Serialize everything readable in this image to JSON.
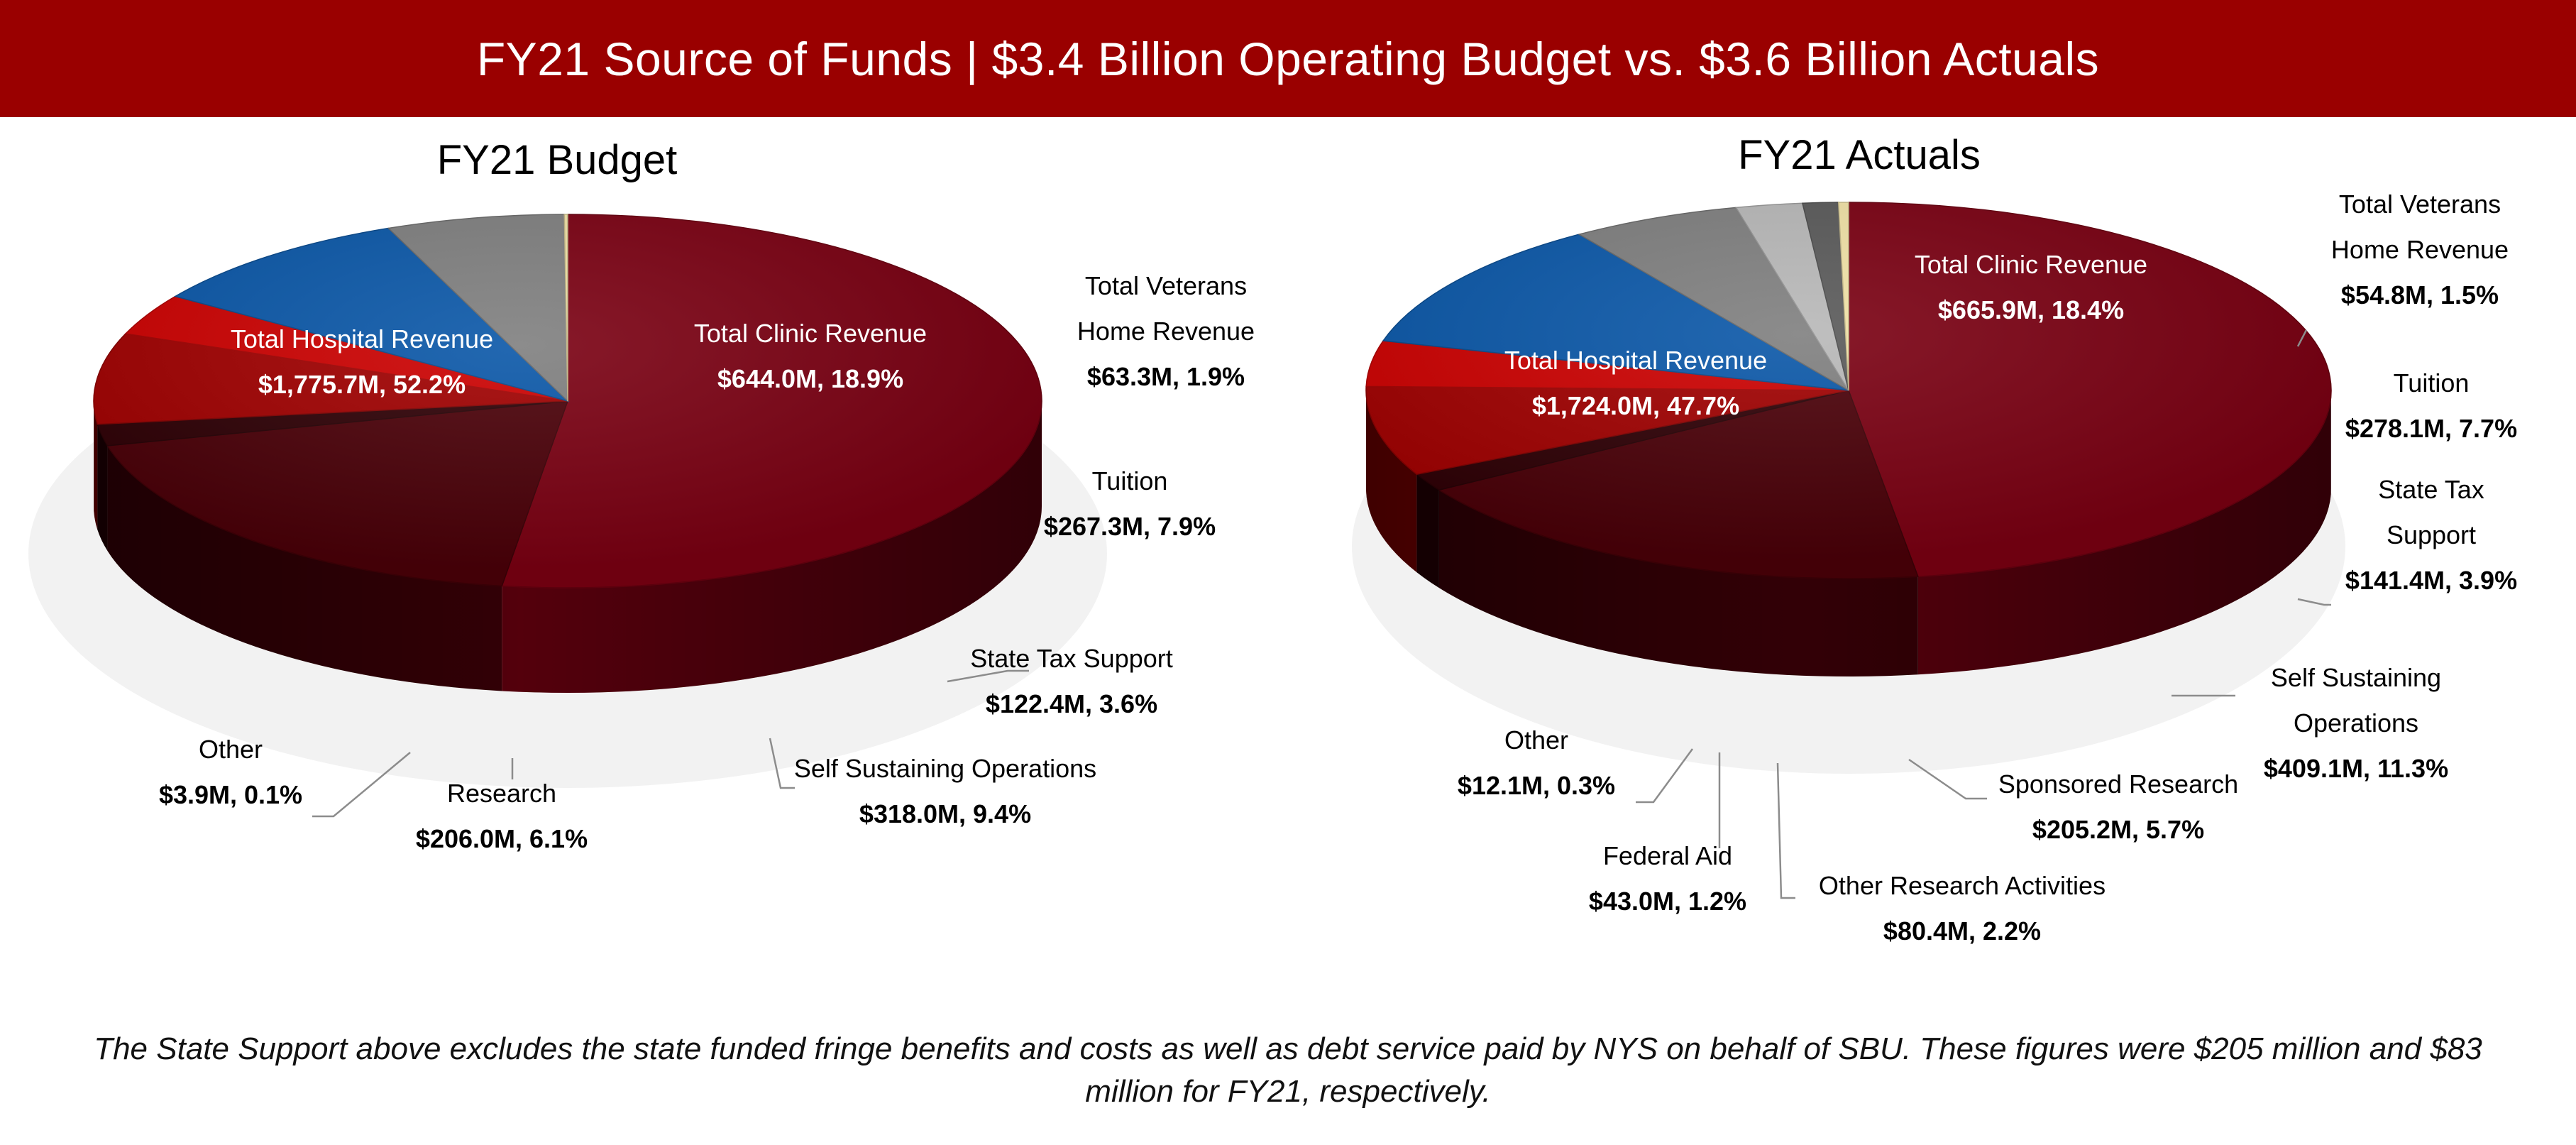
{
  "header": {
    "title": "FY21 Source of Funds | $3.4 Billion Operating Budget vs. $3.6 Billion Actuals"
  },
  "colors": {
    "banner": "#9a0000",
    "hospital": "#7a0012",
    "clinic": "#4a0008",
    "veterans": "#2e0005",
    "tuition": "#a00000",
    "state_tax": "#cc0000",
    "self_sustaining": "#0a57a8",
    "sponsored_research": "#7f7f7f",
    "other_research": "#b8b8b8",
    "federal_aid": "#595959",
    "other": "#f1e2a6"
  },
  "chart_data": [
    {
      "type": "pie",
      "title": "FY21 Budget",
      "slices": [
        {
          "key": "hospital",
          "name": "Total Hospital Revenue",
          "value_label": "$1,775.7M, 52.2%",
          "value_millions": 1775.7,
          "percent": 52.2,
          "color": "#7a0012"
        },
        {
          "key": "clinic",
          "name": "Total Clinic Revenue",
          "value_label": "$644.0M, 18.9%",
          "value_millions": 644.0,
          "percent": 18.9,
          "color": "#4a0008"
        },
        {
          "key": "veterans",
          "name": [
            "Total Veterans",
            "Home Revenue"
          ],
          "value_label": "$63.3M, 1.9%",
          "value_millions": 63.3,
          "percent": 1.9,
          "color": "#2e0005"
        },
        {
          "key": "tuition",
          "name": "Tuition",
          "value_label": "$267.3M, 7.9%",
          "value_millions": 267.3,
          "percent": 7.9,
          "color": "#a00000"
        },
        {
          "key": "state_tax",
          "name": "State Tax Support",
          "value_label": "$122.4M, 3.6%",
          "value_millions": 122.4,
          "percent": 3.6,
          "color": "#cc0000"
        },
        {
          "key": "self_sustaining",
          "name": "Self Sustaining Operations",
          "value_label": "$318.0M, 9.4%",
          "value_millions": 318.0,
          "percent": 9.4,
          "color": "#0a57a8"
        },
        {
          "key": "research",
          "name": "Research",
          "value_label": "$206.0M, 6.1%",
          "value_millions": 206.0,
          "percent": 6.1,
          "color": "#7f7f7f"
        },
        {
          "key": "other",
          "name": "Other",
          "value_label": "$3.9M, 0.1%",
          "value_millions": 3.9,
          "percent": 0.1,
          "color": "#f1e2a6"
        }
      ]
    },
    {
      "type": "pie",
      "title": "FY21 Actuals",
      "slices": [
        {
          "key": "hospital",
          "name": "Total Hospital Revenue",
          "value_label": "$1,724.0M, 47.7%",
          "value_millions": 1724.0,
          "percent": 47.7,
          "color": "#7a0012"
        },
        {
          "key": "clinic",
          "name": "Total Clinic Revenue",
          "value_label": "$665.9M, 18.4%",
          "value_millions": 665.9,
          "percent": 18.4,
          "color": "#4a0008"
        },
        {
          "key": "veterans",
          "name": [
            "Total Veterans",
            "Home Revenue"
          ],
          "value_label": "$54.8M, 1.5%",
          "value_millions": 54.8,
          "percent": 1.5,
          "color": "#2e0005"
        },
        {
          "key": "tuition",
          "name": "Tuition",
          "value_label": "$278.1M, 7.7%",
          "value_millions": 278.1,
          "percent": 7.7,
          "color": "#a00000"
        },
        {
          "key": "state_tax",
          "name": [
            "State Tax",
            "Support"
          ],
          "value_label": "$141.4M, 3.9%",
          "value_millions": 141.4,
          "percent": 3.9,
          "color": "#cc0000"
        },
        {
          "key": "self_sustaining",
          "name": [
            "Self Sustaining",
            "Operations"
          ],
          "value_label": "$409.1M, 11.3%",
          "value_millions": 409.1,
          "percent": 11.3,
          "color": "#0a57a8"
        },
        {
          "key": "sponsored_research",
          "name": "Sponsored Research",
          "value_label": "$205.2M, 5.7%",
          "value_millions": 205.2,
          "percent": 5.7,
          "color": "#7f7f7f"
        },
        {
          "key": "other_research",
          "name": "Other Research Activities",
          "value_label": "$80.4M, 2.2%",
          "value_millions": 80.4,
          "percent": 2.2,
          "color": "#b8b8b8"
        },
        {
          "key": "federal_aid",
          "name": "Federal Aid",
          "value_label": "$43.0M, 1.2%",
          "value_millions": 43.0,
          "percent": 1.2,
          "color": "#595959"
        },
        {
          "key": "other",
          "name": "Other",
          "value_label": "$12.1M, 0.3%",
          "value_millions": 12.1,
          "percent": 0.3,
          "color": "#f1e2a6"
        }
      ]
    }
  ],
  "footnote": "The State Support above excludes the state funded fringe benefits and costs as well as debt service paid by NYS on behalf of SBU. These figures were $205 million and $83 million for FY21, respectively."
}
